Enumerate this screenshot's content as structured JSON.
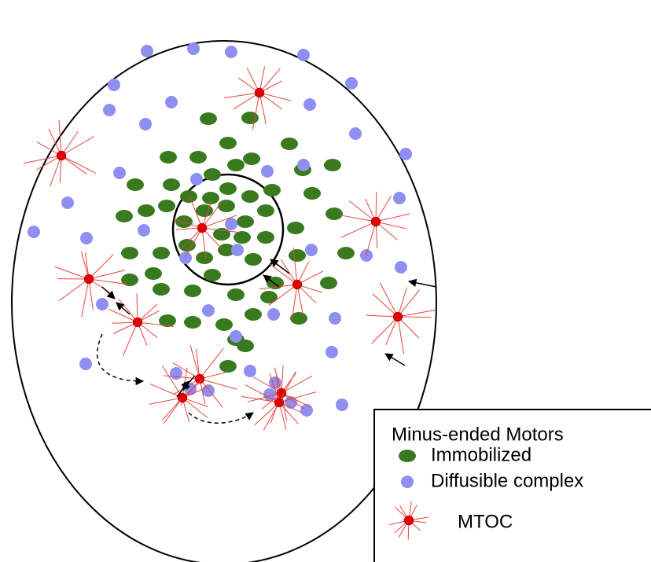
{
  "legend": {
    "title": "Minus-ended Motors",
    "items": [
      "Immobilized",
      "Diffusible complex",
      "MTOC"
    ]
  }
}
